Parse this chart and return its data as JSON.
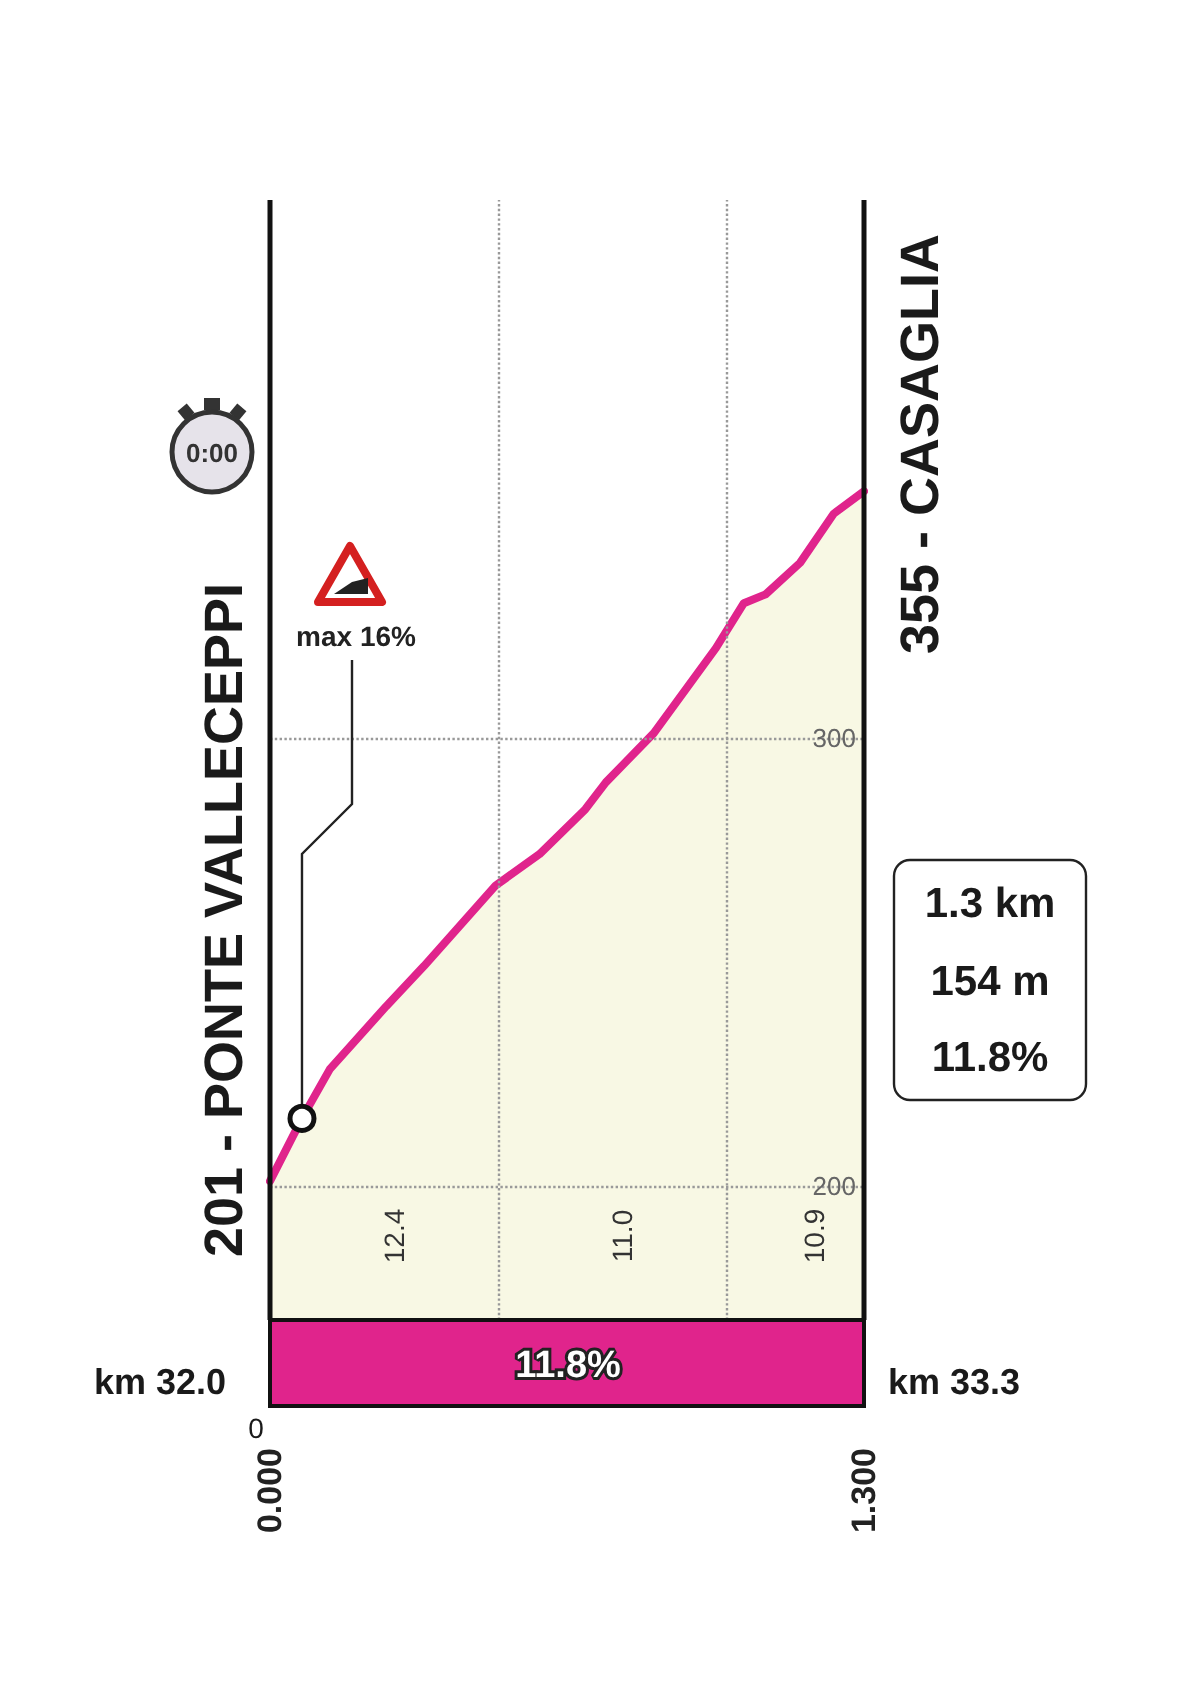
{
  "chart_data": {
    "type": "area",
    "x": [
      0,
      0.07,
      0.131,
      0.254,
      0.337,
      0.494,
      0.59,
      0.69,
      0.735,
      0.84,
      0.976,
      1.037,
      1.085,
      1.16,
      1.234,
      1.3
    ],
    "series": [
      {
        "color": "#e0248c",
        "values": [
          201,
          215,
          226,
          240,
          249,
          267,
          274,
          284,
          290,
          301,
          320,
          330,
          332,
          339,
          350,
          355
        ]
      }
    ],
    "xlim": [
      0,
      1.3
    ],
    "xticks": [
      {
        "value": 0,
        "label": "0.000"
      },
      {
        "value": 1.3,
        "label": "1.300"
      }
    ],
    "ylim": [
      170,
      420
    ],
    "yticks": [
      200,
      300
    ],
    "grid": "y",
    "ref_lines": [
      {
        "axis": "x",
        "value": 0.5,
        "line_style": "dotted",
        "color": "#999999"
      },
      {
        "axis": "x",
        "value": 1.0,
        "line_style": "dotted",
        "color": "#999999"
      }
    ],
    "annotations": [
      "0:00",
      "201 - PONTE VALLECEPPI",
      "355 - CASAGLIA",
      {
        "text": "max 16%",
        "x": 0.07,
        "y": 215
      },
      "1.3 km",
      "154 m",
      "11.8%",
      "12.4",
      "11.0",
      "10.9",
      "11.8%",
      "km 32.0",
      "km 33.3",
      "0"
    ]
  }
}
